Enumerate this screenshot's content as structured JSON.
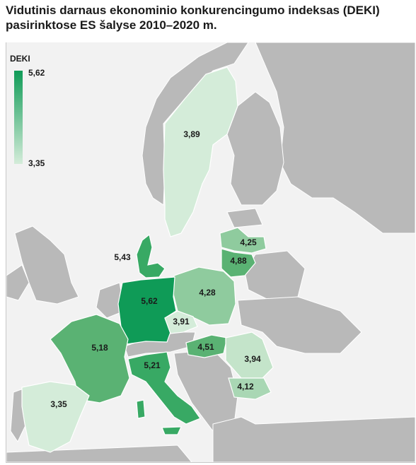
{
  "title": "Vidutinis darnaus ekonominio konkurencingumo indeksas (DEKI) pasirinktose ES šalyse 2010–2020 m.",
  "legend": {
    "label": "DEKI",
    "max": "5,62",
    "min": "3,35",
    "color_max": "#0f9b57",
    "color_min": "#d4ecd9"
  },
  "countries": [
    {
      "id": "sweden",
      "value": "3,89"
    },
    {
      "id": "latvia",
      "value": "4,25"
    },
    {
      "id": "lithuania",
      "value": "4,88"
    },
    {
      "id": "denmark",
      "value": "5,43"
    },
    {
      "id": "poland",
      "value": "4,28"
    },
    {
      "id": "germany",
      "value": "5,62"
    },
    {
      "id": "czechia",
      "value": "3,91"
    },
    {
      "id": "hungary",
      "value": "4,51"
    },
    {
      "id": "romania",
      "value": "3,94"
    },
    {
      "id": "bulgaria",
      "value": "4,12"
    },
    {
      "id": "france",
      "value": "5,18"
    },
    {
      "id": "italy",
      "value": "5,21"
    },
    {
      "id": "spain",
      "value": "3,35"
    }
  ]
}
